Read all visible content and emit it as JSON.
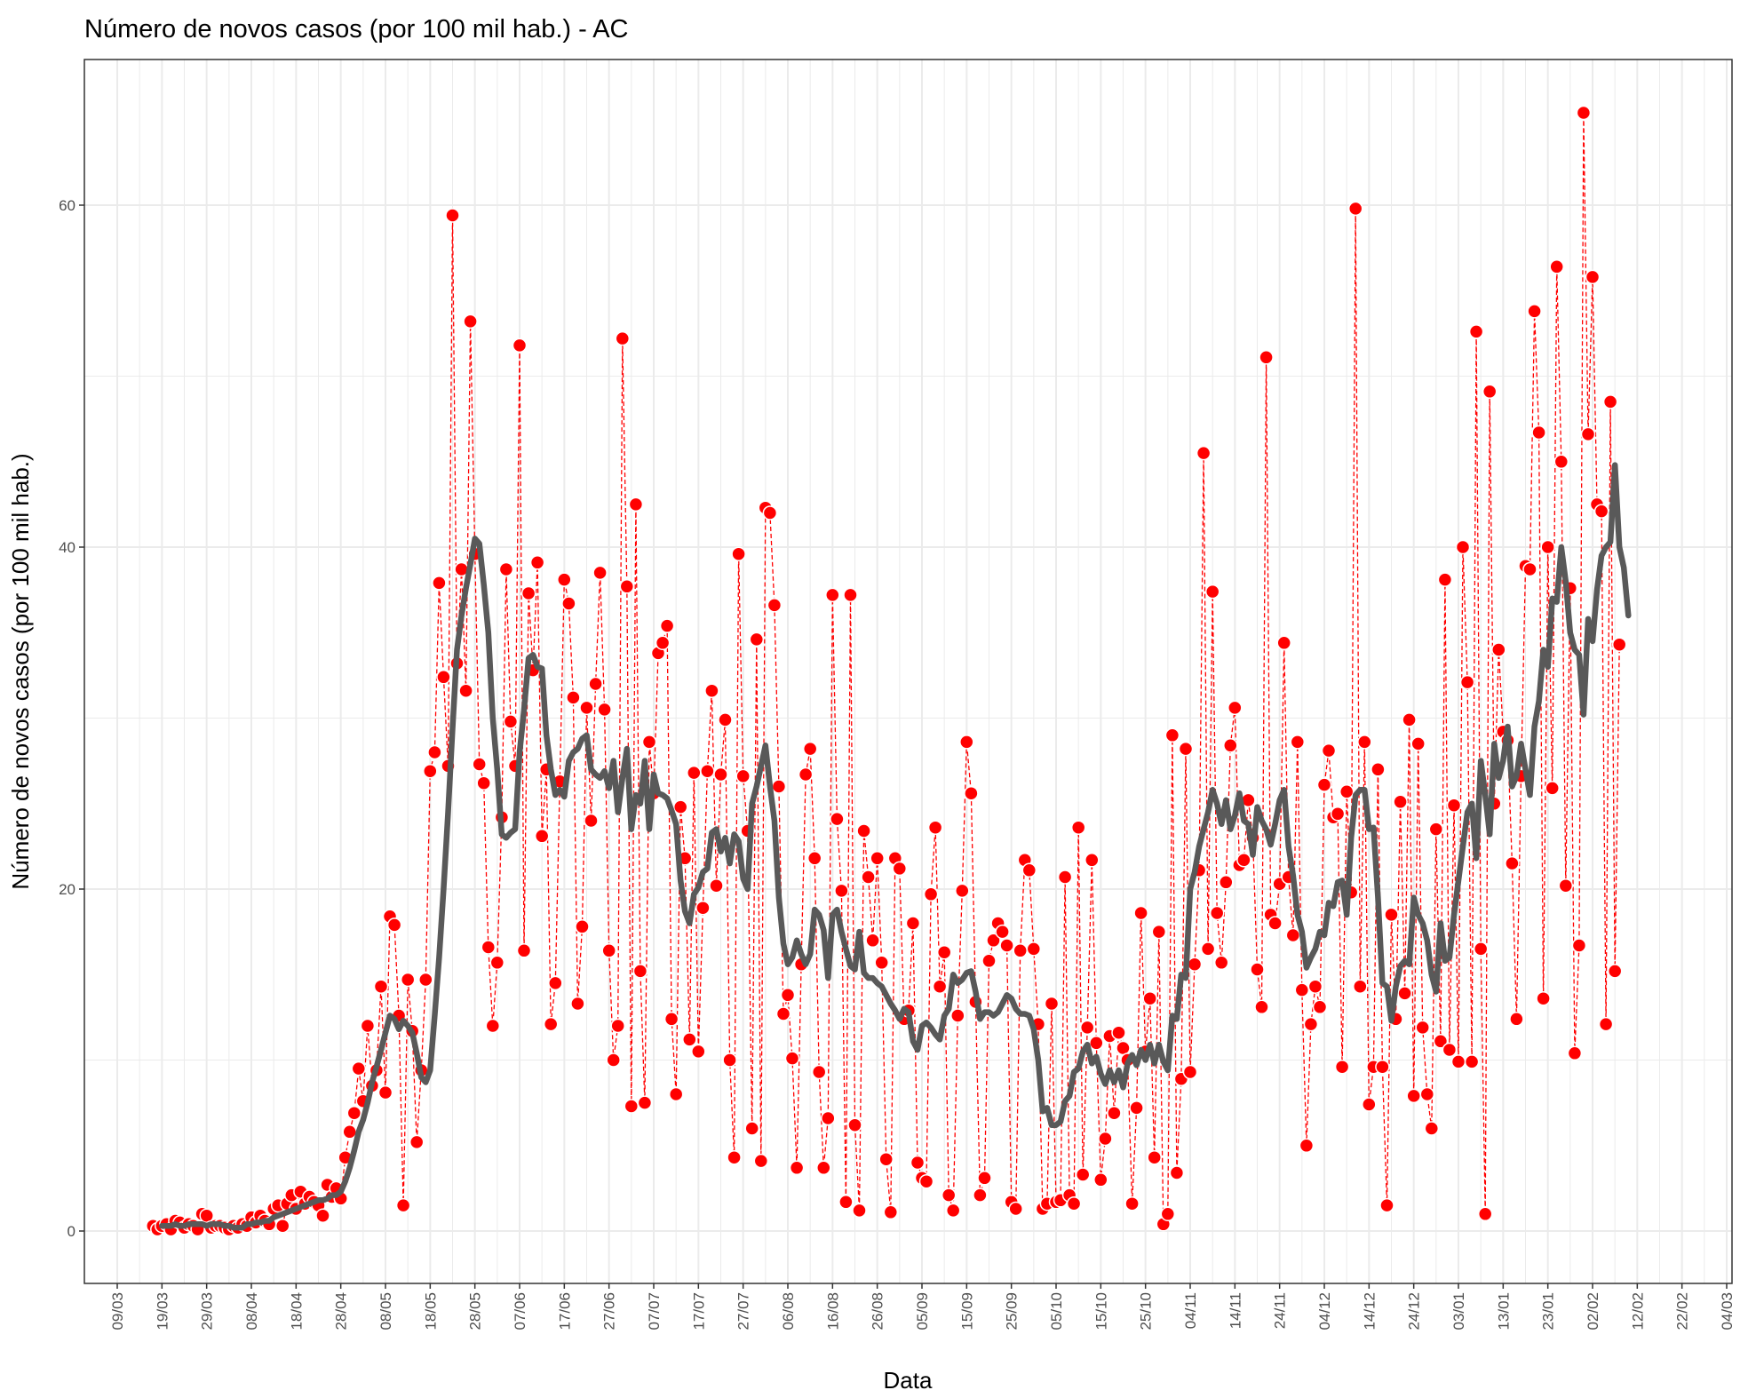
{
  "colors": {
    "points": "#ff0000",
    "daily_line": "#ff0000",
    "moving_average": "#595959",
    "grid": "#ebebeb",
    "panel_border": "#333333"
  },
  "chart_data": {
    "type": "line",
    "title": "Número de novos casos (por 100 mil hab.) - AC",
    "xlabel": "Data",
    "ylabel": "Número de novos casos (por 100 mil hab.)",
    "ylim": [
      -3,
      68
    ],
    "yticks": [
      0,
      20,
      40,
      60
    ],
    "xticks": [
      "09/03",
      "19/03",
      "29/03",
      "08/04",
      "18/04",
      "28/04",
      "08/05",
      "18/05",
      "28/05",
      "07/06",
      "17/06",
      "27/06",
      "07/07",
      "17/07",
      "27/07",
      "06/08",
      "16/08",
      "26/08",
      "05/09",
      "15/09",
      "25/09",
      "05/10",
      "15/10",
      "25/10",
      "04/11",
      "14/11",
      "24/11",
      "04/12",
      "14/12",
      "24/12",
      "03/01",
      "13/01",
      "23/01",
      "02/02",
      "12/02",
      "22/02",
      "04/03"
    ],
    "grid": true,
    "legend": "none",
    "series": [
      {
        "kind": "daily-points",
        "x_start": "17/03",
        "values": [
          0.3,
          0.1,
          0.3,
          0.4,
          0.1,
          0.6,
          0.5,
          0.2,
          0.4,
          0.3,
          0.1,
          1.0,
          0.9,
          0.2,
          0.3,
          0.3,
          0.2,
          0.1,
          0.3,
          0.2,
          0.4,
          0.3,
          0.8,
          0.5,
          0.9,
          0.6,
          0.4,
          1.3,
          1.5,
          0.3,
          1.6,
          2.1,
          1.3,
          2.3,
          1.6,
          2.0,
          1.7,
          1.5,
          0.9,
          2.7,
          2.0,
          2.5,
          1.9,
          4.3,
          5.8,
          6.9,
          9.5,
          7.6,
          12.0,
          8.5,
          9.4,
          14.3,
          8.1,
          18.4,
          17.9,
          12.6,
          1.5,
          14.7,
          11.7,
          5.2,
          9.4,
          14.7,
          26.9,
          28.0,
          37.9,
          32.4,
          27.2,
          59.4,
          33.2,
          38.7,
          31.6,
          53.2,
          39.6,
          27.3,
          26.2,
          16.6,
          12.0,
          15.7,
          24.2,
          38.7,
          29.8,
          27.2,
          51.8,
          16.4,
          37.3,
          32.8,
          39.1,
          23.1,
          27.0,
          12.1,
          14.5,
          26.3,
          38.1,
          36.7,
          31.2,
          13.3,
          17.8,
          30.6,
          24.0,
          32.0,
          38.5,
          30.5,
          16.4,
          10.0,
          12.0,
          52.2,
          37.7,
          7.3,
          42.5,
          15.2,
          7.5,
          28.6,
          25.6,
          33.8,
          34.4,
          35.4,
          12.4,
          8.0,
          24.8,
          21.8,
          11.2,
          26.8,
          10.5,
          18.9,
          26.9,
          31.6,
          20.2,
          26.7,
          29.9,
          10.0,
          4.3,
          39.6,
          26.6,
          23.4,
          6.0,
          34.6,
          4.1,
          42.3,
          42.0,
          36.6,
          26.0,
          12.7,
          13.8,
          10.1,
          3.7,
          15.6,
          26.7,
          28.2,
          21.8,
          9.3,
          3.7,
          6.6,
          37.2,
          24.1,
          19.9,
          1.7,
          37.2,
          6.2,
          1.2,
          23.4,
          20.7,
          17.0,
          21.8,
          15.7,
          4.2,
          1.1,
          21.8,
          21.2,
          12.4,
          12.9,
          18.0,
          4.0,
          3.1,
          2.9,
          19.7,
          23.6,
          14.3,
          16.3,
          2.1,
          1.2,
          12.6,
          19.9,
          28.6,
          25.6,
          13.4,
          2.1,
          3.1,
          15.8,
          17.0,
          18.0,
          17.5,
          16.7,
          1.7,
          1.3,
          16.4,
          21.7,
          21.1,
          16.5,
          12.1,
          1.3,
          1.6,
          13.3,
          1.7,
          1.8,
          20.7,
          2.1,
          1.6,
          23.6,
          3.3,
          11.9,
          21.7,
          11.0,
          3.0,
          5.4,
          11.4,
          6.9,
          11.6,
          10.7,
          10.0,
          1.6,
          7.2,
          18.6,
          10.5,
          13.6,
          4.3,
          17.5,
          0.4,
          1.0,
          29.0,
          3.4,
          8.9,
          28.2,
          9.3,
          15.6,
          21.1,
          45.5,
          16.5,
          37.4,
          18.6,
          15.7,
          20.4,
          28.4,
          30.6,
          21.4,
          21.7,
          25.2,
          23.0,
          15.3,
          13.1,
          51.1,
          18.5,
          18.0,
          20.3,
          34.4,
          20.7,
          17.3,
          28.6,
          14.1,
          5.0,
          12.1,
          14.3,
          13.1,
          26.1,
          28.1,
          24.2,
          24.4,
          9.6,
          25.7,
          19.8,
          59.8,
          14.3,
          28.6,
          7.4,
          9.6,
          27.0,
          9.6,
          1.5,
          18.5,
          12.4,
          25.1,
          13.9,
          29.9,
          7.9,
          28.5,
          11.9,
          8.0,
          6.0,
          23.5,
          11.1,
          38.1,
          10.6,
          24.9,
          9.9,
          40.0,
          32.1,
          9.9,
          52.6,
          16.5,
          1.0,
          49.1,
          25.0,
          34.0,
          29.2,
          28.7,
          21.5,
          12.4,
          26.6,
          38.9,
          38.7,
          53.8,
          46.7,
          13.6,
          40.0,
          25.9,
          56.4,
          45.0,
          20.2,
          37.6,
          10.4,
          16.7,
          65.4,
          46.6,
          55.8,
          42.5,
          42.1,
          12.1,
          48.5,
          15.2,
          34.3
        ]
      },
      {
        "kind": "moving-average",
        "x_start": "19/03",
        "values": [
          0.3,
          0.3,
          0.3,
          0.4,
          0.3,
          0.3,
          0.4,
          0.4,
          0.4,
          0.4,
          0.3,
          0.4,
          0.4,
          0.4,
          0.3,
          0.3,
          0.2,
          0.2,
          0.2,
          0.4,
          0.4,
          0.5,
          0.5,
          0.6,
          0.6,
          0.8,
          0.9,
          1.0,
          1.1,
          1.2,
          1.3,
          1.4,
          1.5,
          1.6,
          1.7,
          1.8,
          1.8,
          1.9,
          2.1,
          2.1,
          2.3,
          2.9,
          3.7,
          4.7,
          5.8,
          6.5,
          7.5,
          8.7,
          9.6,
          10.6,
          11.6,
          12.6,
          12.4,
          11.8,
          12.3,
          12.0,
          11.6,
          10.4,
          9.0,
          8.7,
          9.4,
          12.6,
          16.0,
          20.0,
          24.5,
          29.4,
          34.0,
          36.0,
          37.6,
          39.0,
          40.5,
          40.2,
          37.8,
          35.0,
          30.0,
          27.0,
          23.2,
          23.0,
          23.3,
          23.5,
          28.0,
          30.5,
          33.5,
          33.7,
          33.0,
          32.9,
          29.0,
          27.0,
          25.5,
          25.8,
          25.4,
          27.5,
          28.0,
          28.2,
          28.8,
          29.0,
          27.0,
          26.7,
          26.5,
          26.9,
          25.9,
          27.5,
          24.5,
          26.5,
          28.2,
          23.5,
          25.5,
          25.0,
          27.5,
          23.5,
          26.7,
          25.6,
          25.5,
          25.3,
          24.6,
          23.8,
          20.5,
          18.7,
          18.0,
          19.7,
          20.1,
          21.0,
          21.2,
          23.3,
          23.5,
          22.2,
          23.0,
          21.5,
          23.2,
          22.8,
          20.6,
          20.0,
          25.0,
          26.0,
          27.2,
          28.4,
          26.0,
          24.0,
          19.5,
          16.8,
          15.6,
          16.0,
          17.0,
          16.2,
          15.6,
          16.2,
          18.8,
          18.5,
          17.6,
          14.8,
          18.5,
          18.8,
          17.5,
          16.5,
          15.5,
          15.3,
          17.5,
          15.1,
          14.8,
          14.8,
          14.5,
          14.3,
          13.8,
          13.3,
          12.9,
          12.4,
          13.0,
          12.8,
          11.1,
          10.6,
          12.0,
          12.2,
          11.9,
          11.5,
          11.2,
          12.6,
          13.0,
          15.0,
          14.5,
          14.7,
          15.1,
          15.2,
          14.0,
          12.4,
          12.8,
          12.8,
          12.6,
          12.8,
          13.3,
          13.8,
          13.6,
          13.0,
          12.7,
          12.7,
          12.6,
          11.8,
          10.0,
          7.0,
          7.2,
          6.2,
          6.2,
          6.4,
          7.6,
          7.9,
          9.3,
          9.5,
          10.5,
          10.9,
          9.8,
          10.2,
          9.2,
          8.6,
          9.4,
          8.7,
          9.4,
          8.4,
          9.8,
          10.3,
          9.7,
          10.6,
          10.0,
          10.9,
          9.8,
          10.9,
          9.9,
          9.4,
          12.6,
          12.4,
          15.0,
          14.8,
          20.0,
          21.0,
          22.5,
          23.5,
          24.5,
          25.8,
          25.0,
          23.8,
          25.2,
          23.5,
          24.3,
          25.6,
          24.0,
          23.8,
          22.0,
          24.8,
          24.0,
          23.5,
          22.6,
          23.8,
          25.2,
          25.8,
          22.5,
          20.8,
          18.5,
          17.5,
          15.4,
          16.0,
          16.5,
          17.5,
          17.3,
          19.2,
          19.0,
          20.4,
          20.5,
          18.5,
          23.0,
          25.5,
          25.8,
          25.8,
          23.5,
          23.6,
          19.5,
          14.5,
          14.3,
          12.3,
          14.3,
          15.5,
          15.8,
          15.6,
          19.5,
          18.5,
          18.0,
          17.0,
          15.0,
          14.0,
          18.0,
          15.8,
          16.0,
          18.5,
          20.5,
          22.5,
          24.5,
          25.0,
          21.8,
          27.5,
          25.5,
          23.2,
          28.5,
          26.5,
          27.5,
          29.5,
          26.0,
          26.6,
          28.5,
          27.0,
          25.5,
          29.5,
          31.0,
          34.0,
          33.0,
          37.0,
          36.8,
          40.0,
          38.0,
          35.0,
          34.0,
          33.7,
          30.2,
          35.8,
          34.5,
          37.5,
          39.5,
          40.0,
          40.3,
          44.8,
          40.0,
          38.8,
          36.0
        ]
      }
    ]
  }
}
